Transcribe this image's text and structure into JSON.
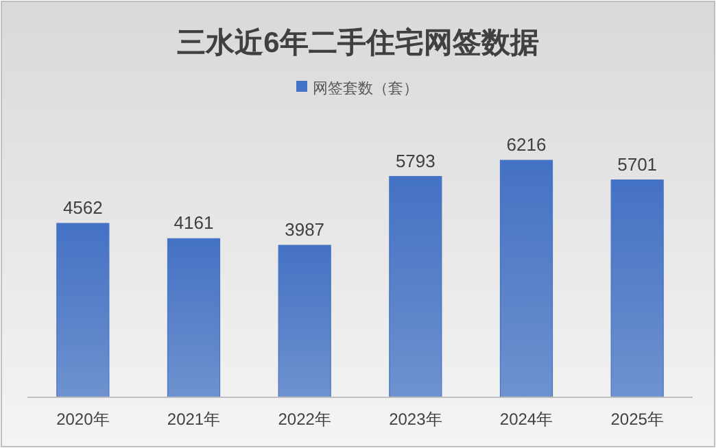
{
  "chart_data": {
    "type": "bar",
    "title": "三水近6年二手住宅网签数据",
    "categories": [
      "2020年",
      "2021年",
      "2022年",
      "2023年",
      "2024年",
      "2025年"
    ],
    "series": [
      {
        "name": "网签套数（套）",
        "color": "#4472c4",
        "values": [
          4562,
          4161,
          3987,
          5793,
          6216,
          5701
        ]
      }
    ],
    "data_labels": true,
    "legend": "top"
  }
}
